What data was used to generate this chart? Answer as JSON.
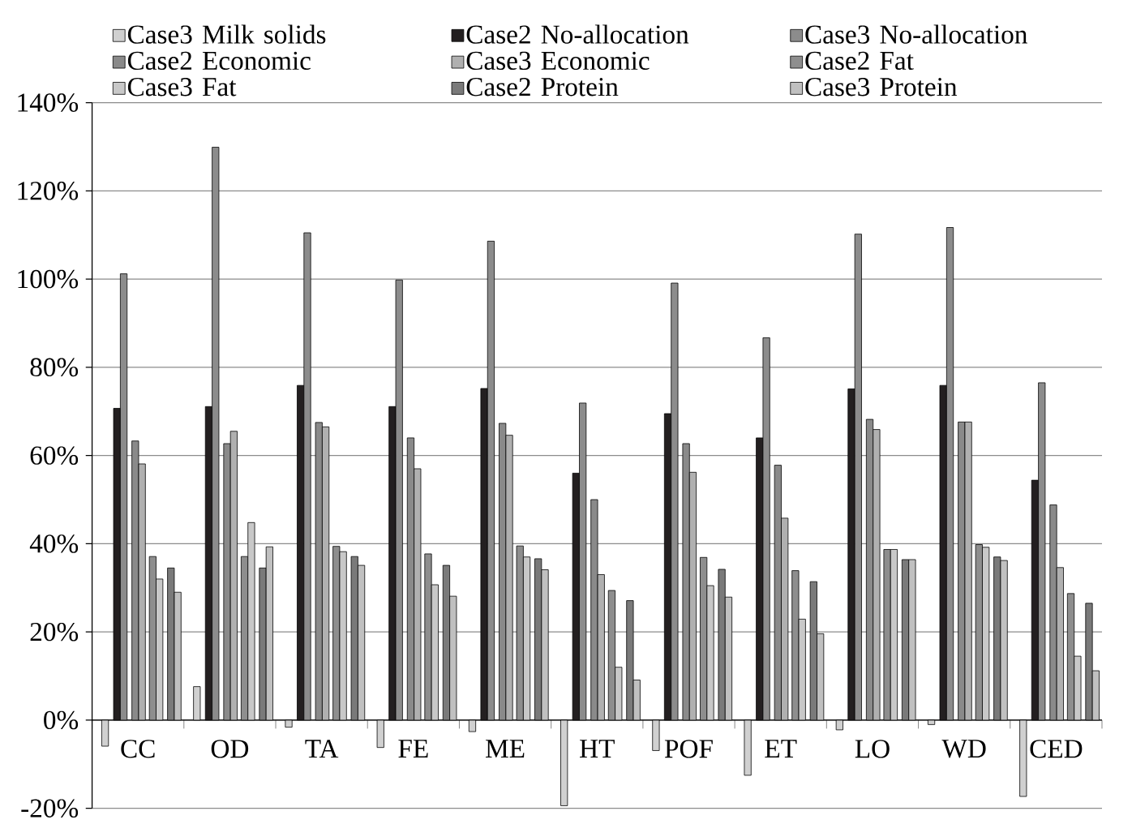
{
  "chart_data": {
    "type": "bar",
    "categories": [
      "CC",
      "OD",
      "TA",
      "FE",
      "ME",
      "HT",
      "POF",
      "ET",
      "LO",
      "WD",
      "CED"
    ],
    "series": [
      {
        "name": "Case3 Milk solids",
        "color": "#d0d0d0",
        "values": [
          -5.9,
          7.6,
          -1.6,
          -6.2,
          -2.6,
          -19.4,
          -6.9,
          -12.5,
          -2.2,
          -1.0,
          -17.3
        ]
      },
      {
        "name": "Case2 No-allocation",
        "color": "#231f20",
        "values": [
          70.7,
          71.1,
          75.9,
          71.1,
          75.2,
          56.0,
          69.5,
          64.0,
          75.1,
          75.9,
          54.4
        ]
      },
      {
        "name": "Case3 No-allocation",
        "color": "#8c8c8c",
        "values": [
          101.2,
          129.9,
          110.5,
          99.8,
          108.6,
          71.9,
          99.1,
          86.7,
          110.2,
          111.7,
          76.5
        ]
      },
      {
        "name": "Case2 Economic",
        "color": "#8a8a8a",
        "values": [
          63.3,
          62.7,
          67.5,
          64.0,
          67.3,
          50.0,
          62.7,
          57.8,
          68.2,
          67.6,
          48.8
        ]
      },
      {
        "name": "Case3 Economic",
        "color": "#b0b0b0",
        "values": [
          58.1,
          65.5,
          66.5,
          57.0,
          64.6,
          33.0,
          56.2,
          45.8,
          65.9,
          67.6,
          34.6
        ]
      },
      {
        "name": "Case2 Fat",
        "color": "#8e8e8e",
        "values": [
          37.1,
          37.1,
          39.4,
          37.7,
          39.5,
          29.4,
          36.9,
          33.9,
          38.7,
          39.8,
          28.7
        ]
      },
      {
        "name": "Case3 Fat",
        "color": "#c8c8c8",
        "values": [
          32.0,
          44.8,
          38.2,
          30.7,
          37.0,
          12.0,
          30.5,
          22.9,
          38.7,
          39.2,
          14.5
        ]
      },
      {
        "name": "Case2 Protein",
        "color": "#7a7a7a",
        "values": [
          34.5,
          34.5,
          37.1,
          35.1,
          36.6,
          27.1,
          34.2,
          31.4,
          36.4,
          37.0,
          26.5
        ]
      },
      {
        "name": "Case3 Protein",
        "color": "#c0c0c0",
        "values": [
          29.0,
          39.3,
          35.1,
          28.1,
          34.1,
          9.1,
          27.9,
          19.6,
          36.4,
          36.2,
          11.2
        ]
      }
    ],
    "ylim": [
      -20,
      140
    ],
    "yticks": [
      {
        "value": -20,
        "label": "-20%"
      },
      {
        "value": 0,
        "label": "0%"
      },
      {
        "value": 20,
        "label": "20%"
      },
      {
        "value": 40,
        "label": "40%"
      },
      {
        "value": 60,
        "label": "60%"
      },
      {
        "value": 80,
        "label": "80%"
      },
      {
        "value": 100,
        "label": "100%"
      },
      {
        "value": 120,
        "label": "120%"
      },
      {
        "value": 140,
        "label": "140%"
      }
    ],
    "grid": "y",
    "legend": "top"
  }
}
